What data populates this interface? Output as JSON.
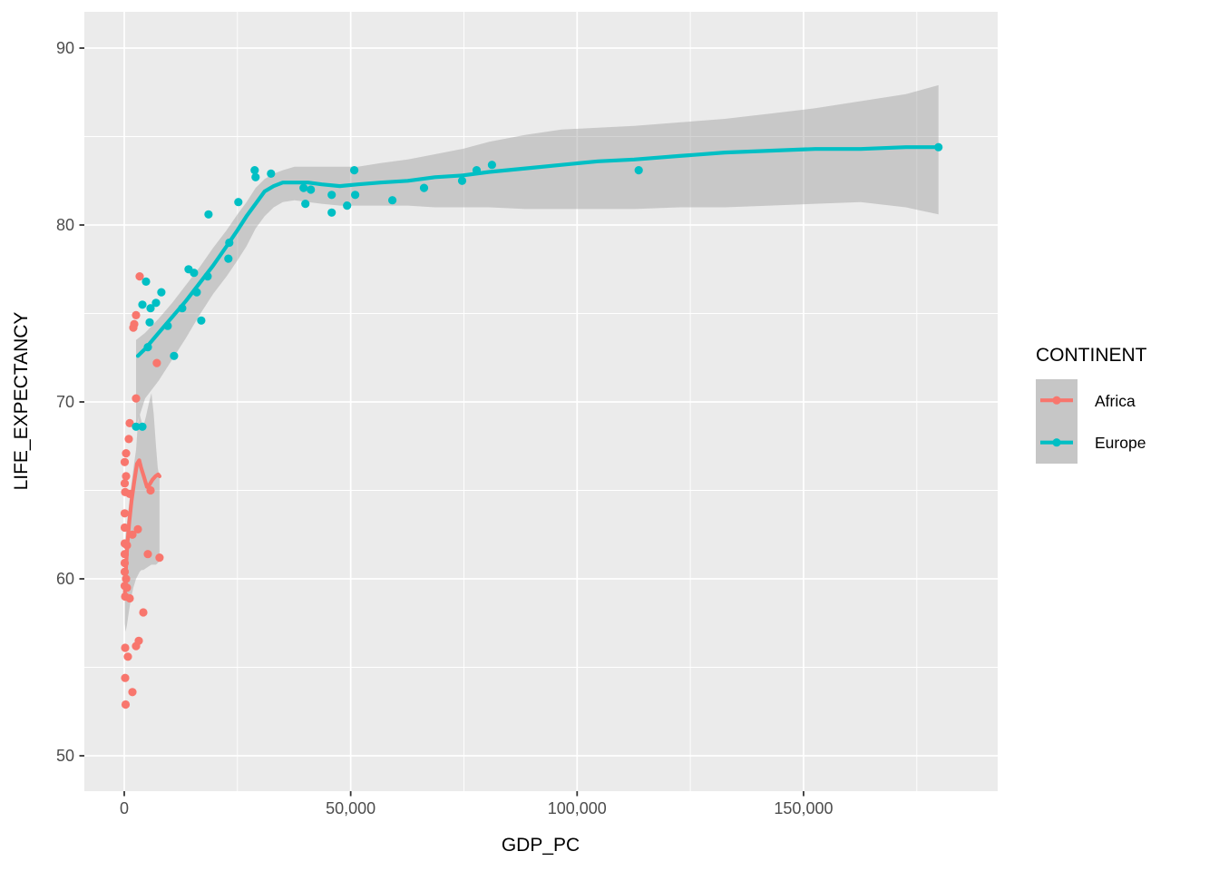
{
  "chart_data": {
    "type": "scatter",
    "title": "",
    "xlabel": "GDP_PC",
    "ylabel": "LIFE_EXPECTANCY",
    "grid": true,
    "panel_bg": "#EBEBEB",
    "grid_color": "#FFFFFF",
    "ribbon_color": "#999999",
    "tick_text_color": "#4d4d4d",
    "xlim": [
      -8800,
      192900
    ],
    "ylim": [
      48.0,
      92.1
    ],
    "x_ticks": [
      {
        "value": 0,
        "label": "0"
      },
      {
        "value": 50000,
        "label": "50,000"
      },
      {
        "value": 100000,
        "label": "100,000"
      },
      {
        "value": 150000,
        "label": "150,000"
      }
    ],
    "x_minor": [
      25000,
      75000,
      125000,
      175000
    ],
    "y_ticks": [
      {
        "value": 50,
        "label": "50"
      },
      {
        "value": 60,
        "label": "60"
      },
      {
        "value": 70,
        "label": "70"
      },
      {
        "value": 80,
        "label": "80"
      },
      {
        "value": 90,
        "label": "90"
      }
    ],
    "y_minor": [
      55,
      65,
      75,
      85
    ],
    "legend": {
      "title": "CONTINENT",
      "position": "right",
      "key_bg": "#C6C6C6"
    },
    "series": [
      {
        "name": "Africa",
        "color": "#F8766D",
        "points": [
          [
            3400,
            77.1
          ],
          [
            2600,
            74.9
          ],
          [
            2200,
            74.4
          ],
          [
            2000,
            74.2
          ],
          [
            7200,
            72.2
          ],
          [
            2600,
            70.2
          ],
          [
            1200,
            68.8
          ],
          [
            1000,
            67.9
          ],
          [
            400,
            67.1
          ],
          [
            100,
            66.6
          ],
          [
            400,
            65.8
          ],
          [
            100,
            65.4
          ],
          [
            200,
            64.9
          ],
          [
            1200,
            64.8
          ],
          [
            5800,
            65.0
          ],
          [
            100,
            63.7
          ],
          [
            1800,
            62.5
          ],
          [
            100,
            62.9
          ],
          [
            3000,
            62.8
          ],
          [
            100,
            62.0
          ],
          [
            600,
            61.9
          ],
          [
            100,
            61.4
          ],
          [
            5200,
            61.4
          ],
          [
            7800,
            61.2
          ],
          [
            100,
            60.9
          ],
          [
            100,
            60.4
          ],
          [
            400,
            60.0
          ],
          [
            100,
            59.6
          ],
          [
            600,
            59.5
          ],
          [
            200,
            59.0
          ],
          [
            1200,
            58.9
          ],
          [
            4200,
            58.1
          ],
          [
            3200,
            56.5
          ],
          [
            2600,
            56.2
          ],
          [
            200,
            56.1
          ],
          [
            800,
            55.6
          ],
          [
            200,
            54.4
          ],
          [
            1800,
            53.6
          ],
          [
            300,
            52.9
          ]
        ],
        "smooth": [
          [
            100,
            58.9
          ],
          [
            250,
            59.9
          ],
          [
            450,
            60.9
          ],
          [
            700,
            62.0
          ],
          [
            1100,
            63.2
          ],
          [
            1600,
            64.4
          ],
          [
            2200,
            65.5
          ],
          [
            2800,
            66.5
          ],
          [
            3300,
            66.7
          ],
          [
            3700,
            66.3
          ],
          [
            4300,
            65.8
          ],
          [
            5000,
            65.2
          ],
          [
            5500,
            65.3
          ],
          [
            6200,
            65.6
          ],
          [
            6900,
            65.8
          ],
          [
            7500,
            65.9
          ],
          [
            7800,
            65.8
          ]
        ],
        "ribbon": [
          [
            100,
            57.5,
            61.8
          ],
          [
            300,
            57.0,
            62.4
          ],
          [
            600,
            57.4,
            63.2
          ],
          [
            1000,
            58.1,
            64.1
          ],
          [
            1500,
            58.9,
            65.2
          ],
          [
            2000,
            59.5,
            66.2
          ],
          [
            2600,
            60.0,
            67.3
          ],
          [
            3000,
            60.2,
            68.8
          ],
          [
            3400,
            60.4,
            69.3
          ],
          [
            3800,
            60.5,
            68.9
          ],
          [
            4200,
            60.5,
            68.6
          ],
          [
            4800,
            60.6,
            69.2
          ],
          [
            5400,
            60.7,
            69.9
          ],
          [
            6000,
            60.8,
            70.5
          ],
          [
            6500,
            60.8,
            69.3
          ],
          [
            7000,
            60.8,
            67.5
          ],
          [
            7400,
            60.9,
            66.3
          ],
          [
            7800,
            61.0,
            65.7
          ]
        ]
      },
      {
        "name": "Europe",
        "color": "#00BFC4",
        "points": [
          [
            4800,
            76.8
          ],
          [
            8200,
            76.2
          ],
          [
            4000,
            75.5
          ],
          [
            5800,
            75.3
          ],
          [
            7000,
            75.6
          ],
          [
            12800,
            75.3
          ],
          [
            16000,
            76.2
          ],
          [
            14200,
            77.5
          ],
          [
            15400,
            77.3
          ],
          [
            18400,
            77.1
          ],
          [
            17000,
            74.6
          ],
          [
            18600,
            80.6
          ],
          [
            23200,
            79.0
          ],
          [
            23000,
            78.1
          ],
          [
            5600,
            74.5
          ],
          [
            9600,
            74.3
          ],
          [
            5200,
            73.1
          ],
          [
            11000,
            72.6
          ],
          [
            2600,
            68.6
          ],
          [
            4000,
            68.6
          ],
          [
            25200,
            81.3
          ],
          [
            28800,
            83.1
          ],
          [
            29000,
            82.7
          ],
          [
            32400,
            82.9
          ],
          [
            39600,
            82.1
          ],
          [
            41200,
            82.0
          ],
          [
            40000,
            81.2
          ],
          [
            45800,
            81.7
          ],
          [
            45800,
            80.7
          ],
          [
            49200,
            81.1
          ],
          [
            50800,
            83.1
          ],
          [
            51000,
            81.7
          ],
          [
            59200,
            81.4
          ],
          [
            66200,
            82.1
          ],
          [
            74600,
            82.5
          ],
          [
            77800,
            83.1
          ],
          [
            81200,
            83.4
          ],
          [
            113600,
            83.1
          ],
          [
            179800,
            84.4
          ]
        ],
        "smooth": [
          [
            3000,
            72.6
          ],
          [
            4600,
            73.0
          ],
          [
            7600,
            73.9
          ],
          [
            10600,
            74.8
          ],
          [
            13600,
            75.7
          ],
          [
            16600,
            76.7
          ],
          [
            19600,
            77.7
          ],
          [
            22600,
            78.8
          ],
          [
            25000,
            79.7
          ],
          [
            27000,
            80.5
          ],
          [
            29000,
            81.2
          ],
          [
            31000,
            81.9
          ],
          [
            33000,
            82.2
          ],
          [
            35000,
            82.4
          ],
          [
            37600,
            82.4
          ],
          [
            40600,
            82.4
          ],
          [
            43600,
            82.3
          ],
          [
            47600,
            82.2
          ],
          [
            51600,
            82.3
          ],
          [
            56600,
            82.4
          ],
          [
            62600,
            82.5
          ],
          [
            68600,
            82.7
          ],
          [
            74600,
            82.8
          ],
          [
            80600,
            83.0
          ],
          [
            88600,
            83.2
          ],
          [
            96600,
            83.4
          ],
          [
            104600,
            83.6
          ],
          [
            112600,
            83.7
          ],
          [
            122600,
            83.9
          ],
          [
            132600,
            84.1
          ],
          [
            142600,
            84.2
          ],
          [
            152600,
            84.3
          ],
          [
            162600,
            84.3
          ],
          [
            172600,
            84.4
          ],
          [
            179800,
            84.4
          ]
        ],
        "ribbon": [
          [
            2600,
            68.6,
            73.5
          ],
          [
            4600,
            70.2,
            73.9
          ],
          [
            7600,
            71.2,
            74.7
          ],
          [
            10600,
            72.4,
            75.6
          ],
          [
            13600,
            73.6,
            76.6
          ],
          [
            16600,
            74.9,
            77.6
          ],
          [
            19600,
            76.1,
            78.7
          ],
          [
            22600,
            77.1,
            79.7
          ],
          [
            25000,
            78.0,
            80.6
          ],
          [
            27000,
            78.8,
            81.3
          ],
          [
            29000,
            79.8,
            82.1
          ],
          [
            31000,
            80.5,
            82.6
          ],
          [
            33000,
            81.0,
            82.9
          ],
          [
            35000,
            81.3,
            83.1
          ],
          [
            37600,
            81.4,
            83.3
          ],
          [
            40600,
            81.3,
            83.3
          ],
          [
            43600,
            81.2,
            83.3
          ],
          [
            47600,
            81.1,
            83.3
          ],
          [
            51600,
            81.1,
            83.3
          ],
          [
            56600,
            81.1,
            83.5
          ],
          [
            62600,
            81.1,
            83.7
          ],
          [
            68600,
            81.0,
            84.0
          ],
          [
            74600,
            81.0,
            84.3
          ],
          [
            80600,
            81.0,
            84.7
          ],
          [
            88600,
            80.9,
            85.1
          ],
          [
            96600,
            80.9,
            85.4
          ],
          [
            104600,
            80.9,
            85.5
          ],
          [
            112600,
            80.9,
            85.6
          ],
          [
            122600,
            81.0,
            85.8
          ],
          [
            132600,
            81.0,
            86.0
          ],
          [
            142600,
            81.1,
            86.3
          ],
          [
            152600,
            81.2,
            86.6
          ],
          [
            162600,
            81.3,
            87.0
          ],
          [
            172600,
            81.0,
            87.4
          ],
          [
            179800,
            80.6,
            87.9
          ]
        ]
      }
    ]
  }
}
